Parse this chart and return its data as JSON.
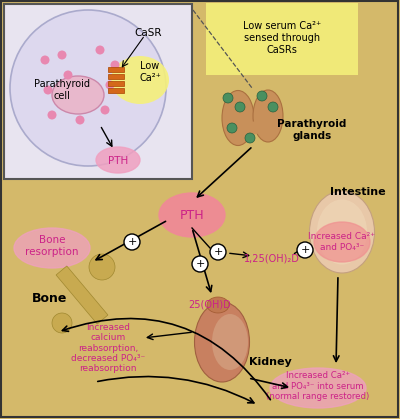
{
  "bg_color": "#d4b96a",
  "inset_bg": "#e8e4f0",
  "yellow_highlight": "#f5f07a",
  "orange_receptor": "#d4681a",
  "text_color_magenta": "#cc2288",
  "labels": {
    "low_serum": "Low serum Ca²⁺\nsensed through\nCaSRs",
    "parathyroid_glands": "Parathyroid\nglands",
    "intestine": "Intestine",
    "bone": "Bone",
    "kidney": "Kidney",
    "bone_resorption": "Bone\nresorption",
    "pth_label": "PTH",
    "casr_label": "CaSR",
    "low_ca_label": "Low\nCa²⁺",
    "parathyroid_cell": "Parathyroid\ncell",
    "pth_inset": "PTH",
    "vitd_125": "1,25(OH)₂D",
    "vitd_25": "25(OH)D",
    "increased_ca_intestine": "Increased Ca²⁺\nand PO₄³⁻",
    "increased_ca_kidney": "Increased\ncalcium\nreabsorption,\ndecreased PO₄³⁻\nreabsorption",
    "increased_ca_serum": "Increased Ca²⁺\nand PO₄³⁻ into serum\n(normal range restored)"
  }
}
